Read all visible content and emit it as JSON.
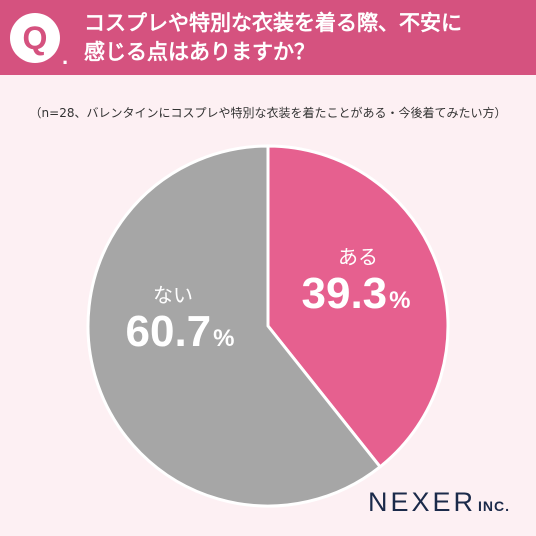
{
  "question": {
    "badge": "Q",
    "dot": ".",
    "line1": "コスプレや特別な衣装を着る際、不安に",
    "line2": "感じる点はありますか？"
  },
  "subtitle": "（n=28、バレンタインにコスプレや特別な衣装を着たことがある・今後着てみたい方）",
  "chart_data": {
    "type": "pie",
    "title": "コスプレや特別な衣装を着る際、不安に感じる点はありますか？",
    "categories": [
      "ある",
      "ない"
    ],
    "values": [
      39.3,
      60.7
    ],
    "value_labels": [
      "39.3",
      "60.7"
    ],
    "unit": "%",
    "colors": [
      "#e6608f",
      "#a6a6a6"
    ],
    "start": "12 o'clock, clockwise"
  },
  "logo": {
    "main": "NEXER",
    "inc": "INC."
  }
}
